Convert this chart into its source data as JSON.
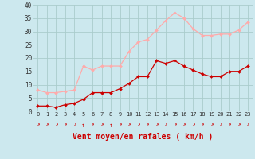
{
  "x": [
    0,
    1,
    2,
    3,
    4,
    5,
    6,
    7,
    8,
    9,
    10,
    11,
    12,
    13,
    14,
    15,
    16,
    17,
    18,
    19,
    20,
    21,
    22,
    23
  ],
  "wind_mean": [
    2,
    2,
    1.5,
    2.5,
    3,
    4.5,
    7,
    7,
    7,
    8.5,
    10.5,
    13,
    13,
    19,
    18,
    19,
    17,
    15.5,
    14,
    13,
    13,
    15,
    15,
    17
  ],
  "wind_gust": [
    8,
    7,
    7,
    7.5,
    8,
    17,
    15.5,
    17,
    17,
    17,
    22.5,
    26,
    27,
    30.5,
    34,
    37,
    35,
    31,
    28.5,
    28.5,
    29,
    29,
    30.5,
    33.5
  ],
  "line_color_mean": "#cc0000",
  "line_color_gust": "#ffaaaa",
  "marker_color_mean": "#cc0000",
  "marker_color_gust": "#ffaaaa",
  "bg_color": "#cce8ee",
  "grid_color": "#aacccc",
  "xlabel": "Vent moyen/en rafales ( km/h )",
  "xlabel_color": "#cc0000",
  "arrow_color": "#cc0000",
  "ylim": [
    0,
    40
  ],
  "yticks": [
    0,
    5,
    10,
    15,
    20,
    25,
    30,
    35,
    40
  ],
  "xticks": [
    0,
    1,
    2,
    3,
    4,
    5,
    6,
    7,
    8,
    9,
    10,
    11,
    12,
    13,
    14,
    15,
    16,
    17,
    18,
    19,
    20,
    21,
    22,
    23
  ],
  "arrow_chars": [
    "↗",
    "↗",
    "↗",
    "↗",
    "↗",
    "↑",
    "↗",
    "↗",
    "↑",
    "↗",
    "↗",
    "↗",
    "↗",
    "↗",
    "↗",
    "↗",
    "↗",
    "↗",
    "↗",
    "↗",
    "↗",
    "↗",
    "↗",
    "↗"
  ]
}
